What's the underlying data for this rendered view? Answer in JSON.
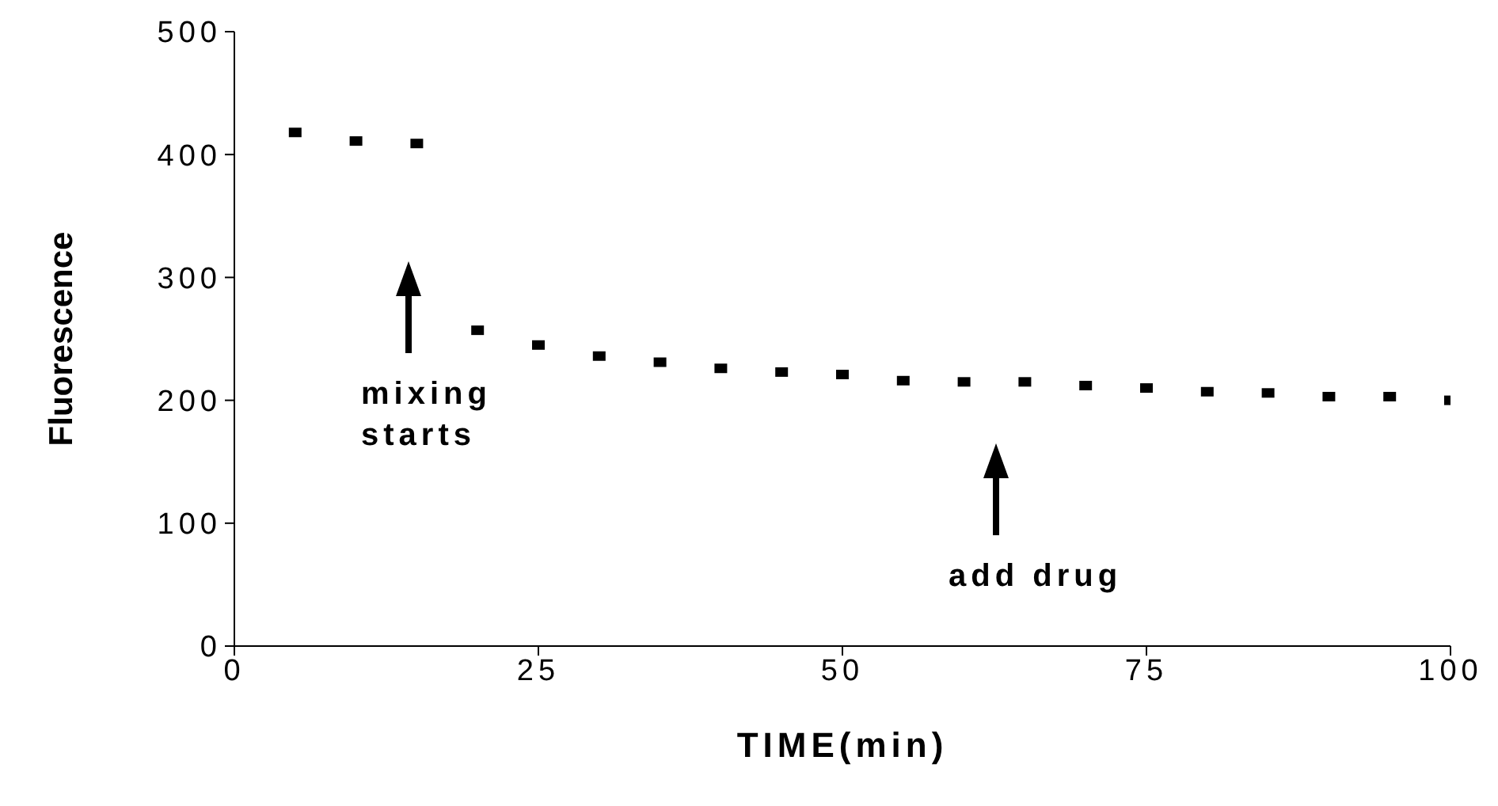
{
  "chart_data": {
    "type": "scatter",
    "xlabel": "TIME(min)",
    "ylabel": "Fluorescence",
    "x": [
      5,
      10,
      15,
      20,
      25,
      30,
      35,
      40,
      45,
      50,
      55,
      60,
      65,
      70,
      75,
      80,
      85,
      90,
      95,
      100
    ],
    "series": [
      {
        "color": "#000000",
        "values": [
          418,
          411,
          409,
          257,
          245,
          236,
          231,
          226,
          223,
          221,
          216,
          215,
          215,
          212,
          210,
          207,
          206,
          203,
          203,
          200
        ]
      }
    ],
    "xlim": [
      0,
      100
    ],
    "xticks": [
      0,
      25,
      50,
      75,
      100
    ],
    "ylim": [
      0,
      500
    ],
    "yticks": [
      0,
      100,
      200,
      300,
      400,
      500
    ],
    "marker": "square",
    "grid": false,
    "legend": false,
    "annotations": [
      "mixing\nstarts",
      "add drug"
    ]
  }
}
